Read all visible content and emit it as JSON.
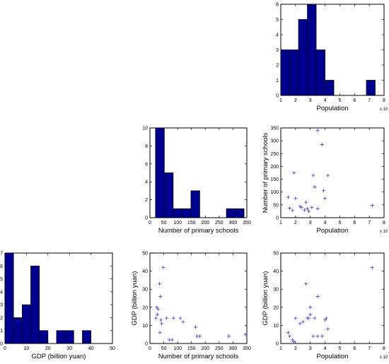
{
  "chart_data": [
    {
      "id": "population-hist",
      "type": "bar",
      "subtype": "histogram",
      "xlabel": "Population",
      "ylabel": "",
      "x_exponent_label": "x 10",
      "x_exponent": "7",
      "xlim": [
        1,
        8
      ],
      "ylim": [
        0,
        6
      ],
      "xticks": [
        1,
        2,
        3,
        4,
        5,
        6,
        7,
        8
      ],
      "yticks": [
        0,
        1,
        2,
        3,
        4,
        5,
        6
      ],
      "bins": [
        {
          "start": 1.0,
          "end": 1.6,
          "count": 3
        },
        {
          "start": 1.6,
          "end": 2.2,
          "count": 3
        },
        {
          "start": 2.2,
          "end": 2.8,
          "count": 5
        },
        {
          "start": 2.8,
          "end": 3.4,
          "count": 6
        },
        {
          "start": 3.4,
          "end": 4.0,
          "count": 3
        },
        {
          "start": 4.0,
          "end": 4.6,
          "count": 1
        },
        {
          "start": 4.6,
          "end": 5.2,
          "count": 0
        },
        {
          "start": 5.2,
          "end": 5.8,
          "count": 0
        },
        {
          "start": 5.8,
          "end": 6.4,
          "count": 0
        },
        {
          "start": 6.8,
          "end": 7.4,
          "count": 1
        }
      ]
    },
    {
      "id": "schools-hist",
      "type": "bar",
      "subtype": "histogram",
      "xlabel": "Number of primary schools",
      "ylabel": "",
      "xlim": [
        0,
        350
      ],
      "ylim": [
        0,
        10
      ],
      "xticks": [
        0,
        50,
        100,
        150,
        200,
        250,
        300,
        350
      ],
      "yticks": [
        0,
        2,
        4,
        6,
        8,
        10
      ],
      "bins": [
        {
          "start": 20,
          "end": 52,
          "count": 10
        },
        {
          "start": 52,
          "end": 84,
          "count": 5
        },
        {
          "start": 84,
          "end": 116,
          "count": 1
        },
        {
          "start": 116,
          "end": 148,
          "count": 1
        },
        {
          "start": 148,
          "end": 180,
          "count": 3
        },
        {
          "start": 180,
          "end": 212,
          "count": 0
        },
        {
          "start": 212,
          "end": 244,
          "count": 0
        },
        {
          "start": 244,
          "end": 276,
          "count": 0
        },
        {
          "start": 276,
          "end": 308,
          "count": 1
        },
        {
          "start": 308,
          "end": 340,
          "count": 1
        }
      ]
    },
    {
      "id": "gdp-hist",
      "type": "bar",
      "subtype": "histogram",
      "xlabel": "GDP (billion yuan)",
      "ylabel": "",
      "xlim": [
        0,
        50
      ],
      "ylim": [
        0,
        7
      ],
      "xticks": [
        0,
        10,
        20,
        30,
        40,
        50
      ],
      "yticks": [
        0,
        1,
        2,
        3,
        4,
        5,
        6,
        7
      ],
      "bins": [
        {
          "start": 0,
          "end": 4,
          "count": 7
        },
        {
          "start": 4,
          "end": 8,
          "count": 2
        },
        {
          "start": 8,
          "end": 12,
          "count": 3
        },
        {
          "start": 12,
          "end": 16,
          "count": 6
        },
        {
          "start": 16,
          "end": 20,
          "count": 1
        },
        {
          "start": 20,
          "end": 24,
          "count": 0
        },
        {
          "start": 24,
          "end": 28,
          "count": 1
        },
        {
          "start": 28,
          "end": 32,
          "count": 1
        },
        {
          "start": 32,
          "end": 36,
          "count": 0
        },
        {
          "start": 36,
          "end": 40,
          "count": 1
        }
      ]
    },
    {
      "id": "population-vs-schools",
      "type": "scatter",
      "xlabel": "Population",
      "ylabel": "Number of primary schools",
      "x_exponent_label": "x 10",
      "x_exponent": "7",
      "xlim": [
        1,
        8
      ],
      "ylim": [
        0,
        350
      ],
      "xticks": [
        1,
        2,
        3,
        4,
        5,
        6,
        7,
        8
      ],
      "yticks": [
        0,
        50,
        100,
        150,
        200,
        250,
        300,
        350
      ],
      "marker": "+",
      "points": [
        [
          1.5,
          80
        ],
        [
          1.6,
          37
        ],
        [
          1.8,
          28
        ],
        [
          1.9,
          175
        ],
        [
          2.0,
          75
        ],
        [
          2.3,
          44
        ],
        [
          2.4,
          40
        ],
        [
          2.6,
          30
        ],
        [
          2.7,
          60
        ],
        [
          2.8,
          35
        ],
        [
          2.9,
          25
        ],
        [
          3.1,
          40
        ],
        [
          3.2,
          165
        ],
        [
          3.3,
          120
        ],
        [
          3.5,
          340
        ],
        [
          3.5,
          35
        ],
        [
          3.8,
          285
        ],
        [
          3.9,
          105
        ],
        [
          4.0,
          75
        ],
        [
          4.2,
          165
        ],
        [
          7.2,
          48
        ]
      ]
    },
    {
      "id": "schools-vs-gdp",
      "type": "scatter",
      "xlabel": "Number of primary schools",
      "ylabel": "GDP (billion yuan)",
      "xlim": [
        0,
        350
      ],
      "ylim": [
        0,
        50
      ],
      "xticks": [
        0,
        50,
        100,
        150,
        200,
        250,
        300,
        350
      ],
      "yticks": [
        0,
        10,
        20,
        30,
        40,
        50
      ],
      "marker": "+",
      "points": [
        [
          22,
          14
        ],
        [
          25,
          20
        ],
        [
          27,
          16
        ],
        [
          30,
          19
        ],
        [
          35,
          33
        ],
        [
          36,
          6
        ],
        [
          38,
          26
        ],
        [
          40,
          13
        ],
        [
          42,
          11
        ],
        [
          48,
          42
        ],
        [
          60,
          14
        ],
        [
          70,
          2
        ],
        [
          80,
          2
        ],
        [
          85,
          14
        ],
        [
          110,
          14
        ],
        [
          120,
          12
        ],
        [
          165,
          9
        ],
        [
          170,
          4
        ],
        [
          180,
          4
        ],
        [
          285,
          4
        ],
        [
          345,
          5
        ]
      ]
    },
    {
      "id": "population-vs-gdp",
      "type": "scatter",
      "xlabel": "Population",
      "ylabel": "GDP (billion yuan)",
      "x_exponent_label": "x 10",
      "x_exponent": "7",
      "xlim": [
        1,
        8
      ],
      "ylim": [
        0,
        50
      ],
      "xticks": [
        1,
        2,
        3,
        4,
        5,
        6,
        7,
        8
      ],
      "yticks": [
        0,
        10,
        20,
        30,
        40,
        50
      ],
      "marker": "+",
      "points": [
        [
          1.5,
          6
        ],
        [
          1.6,
          4
        ],
        [
          1.8,
          2
        ],
        [
          1.9,
          1
        ],
        [
          2.0,
          14
        ],
        [
          2.3,
          11
        ],
        [
          2.5,
          12
        ],
        [
          2.7,
          33
        ],
        [
          2.8,
          14
        ],
        [
          2.9,
          14
        ],
        [
          3.0,
          20
        ],
        [
          3.0,
          16
        ],
        [
          3.2,
          4
        ],
        [
          3.3,
          14
        ],
        [
          3.5,
          26
        ],
        [
          3.5,
          4
        ],
        [
          3.8,
          4
        ],
        [
          4.0,
          13
        ],
        [
          4.1,
          14
        ],
        [
          4.2,
          8
        ],
        [
          7.2,
          42
        ]
      ]
    }
  ],
  "colors": {
    "bar_fill": "#00008f",
    "bar_stroke": "#000000",
    "marker": "#3a3ad8",
    "frame": "#000000",
    "background": "#ffffff"
  }
}
